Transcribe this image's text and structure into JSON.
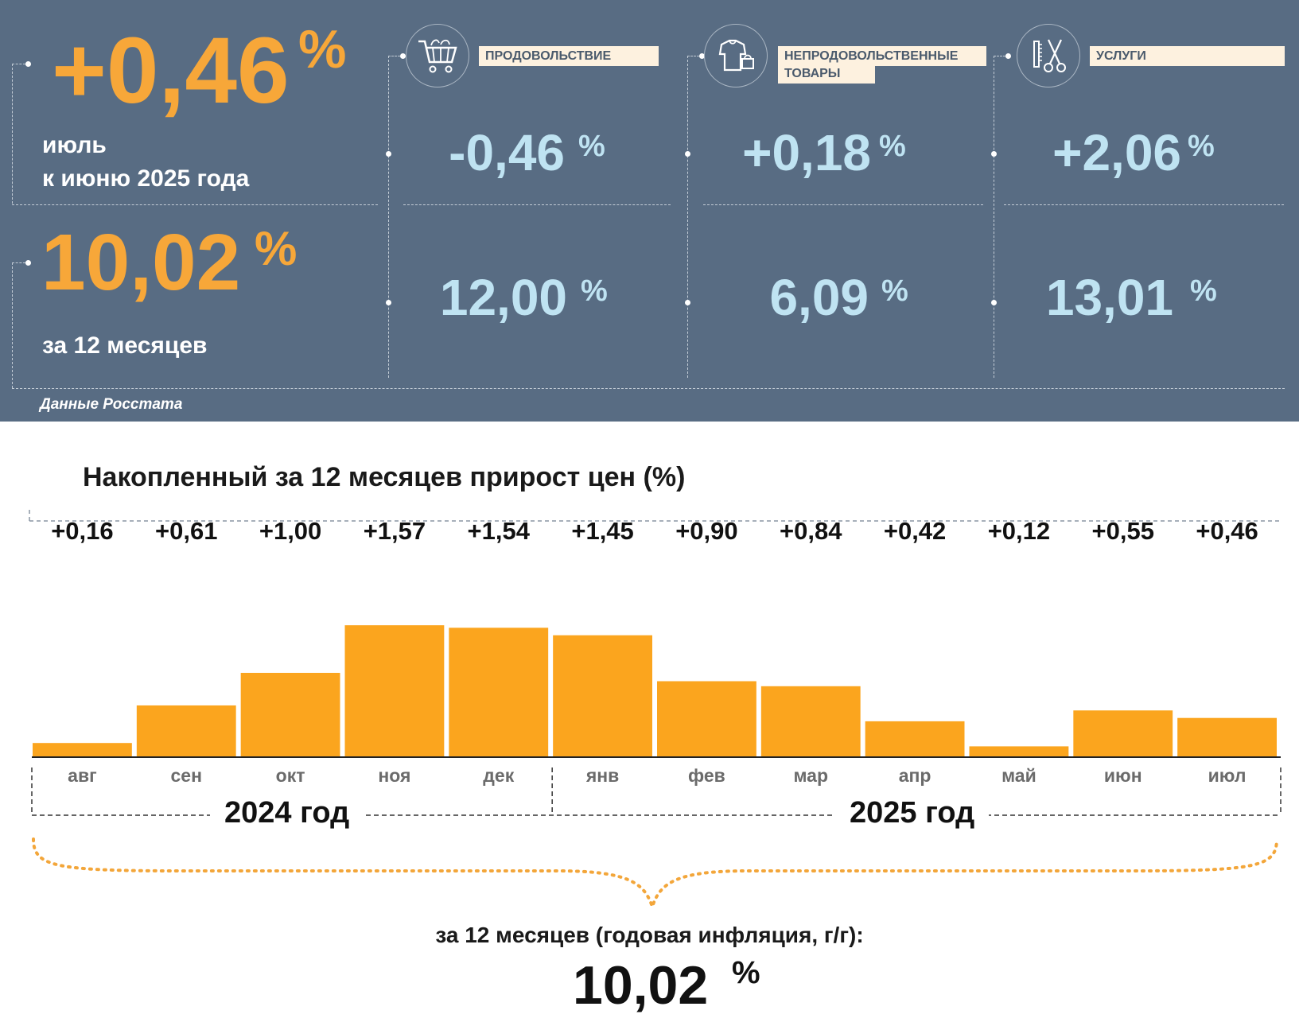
{
  "headline": {
    "monthly_value": "+0,46",
    "monthly_unit": "%",
    "monthly_caption_line1": "июль",
    "monthly_caption_line2": "к июню 2025 года",
    "annual_value": "10,02",
    "annual_unit": "%",
    "annual_caption": "за 12 месяцев"
  },
  "categories": [
    {
      "label": "ПРОДОВОЛЬСТВИЕ",
      "icon": "shopping-cart-icon",
      "monthly": "-0,46",
      "annual": "12,00",
      "unit": "%"
    },
    {
      "label_line1": "НЕПРОДОВОЛЬСТВЕННЫЕ",
      "label_line2": "ТОВАРЫ",
      "icon": "clothes-bag-icon",
      "monthly": "+0,18",
      "annual": "6,09",
      "unit": "%"
    },
    {
      "label": "УСЛУГИ",
      "icon": "scissors-comb-icon",
      "monthly": "+2,06",
      "annual": "13,01",
      "unit": "%"
    }
  ],
  "source": "Данные Росстата",
  "chart_data": {
    "type": "bar",
    "title": "Накопленный за 12 месяцев прирост цен (%)",
    "categories": [
      "авг",
      "сен",
      "окт",
      "ноя",
      "дек",
      "янв",
      "фев",
      "мар",
      "апр",
      "май",
      "июн",
      "июл"
    ],
    "values": [
      0.16,
      0.61,
      1.0,
      1.57,
      1.54,
      1.45,
      0.9,
      0.84,
      0.42,
      0.12,
      0.55,
      0.46
    ],
    "value_labels": [
      "+0,16",
      "+0,61",
      "+1,00",
      "+1,57",
      "+1,54",
      "+1,45",
      "+0,90",
      "+0,84",
      "+0,42",
      "+0,12",
      "+0,55",
      "+0,46"
    ],
    "year_groups": [
      {
        "label": "2024 год",
        "from": 0,
        "to": 4
      },
      {
        "label": "2025 год",
        "from": 5,
        "to": 11
      }
    ],
    "bar_color": "#fba51e",
    "ylim": [
      0,
      1.6
    ],
    "grid": false,
    "legend": "none"
  },
  "footer": {
    "label": "за 12 месяцев (годовая инфляция, г/г):",
    "value": "10,02",
    "unit": "%"
  },
  "colors": {
    "panel": "#586c83",
    "orange": "#f7a739",
    "light_blue": "#bfe3f2",
    "label_box": "#fdf1df"
  }
}
